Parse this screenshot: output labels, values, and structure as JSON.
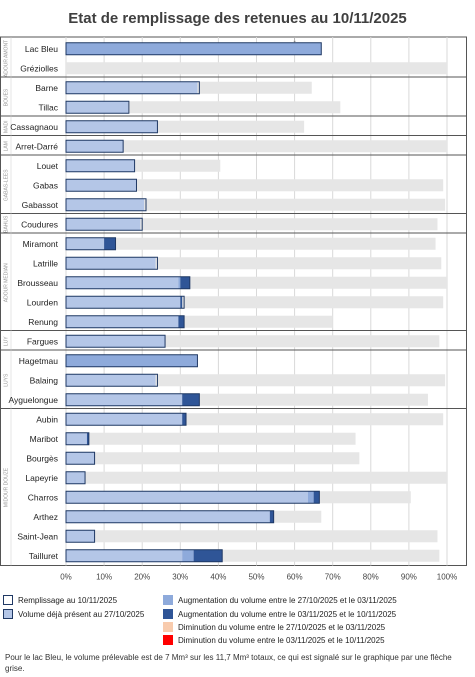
{
  "chart_data": {
    "type": "bar",
    "orientation": "horizontal",
    "stacked": true,
    "title": "Etat de remplissage des retenues au 10/11/2025",
    "x_ticks": [
      "0%",
      "10%",
      "20%",
      "30%",
      "40%",
      "50%",
      "60%",
      "70%",
      "80%",
      "90%",
      "100%"
    ],
    "xlim": [
      0,
      100
    ],
    "grid": true,
    "marker_symbol": "↓",
    "groups": [
      {
        "name": "ADOUR AMONT",
        "rows": [
          "Lac Bleu",
          "Gréziolles"
        ]
      },
      {
        "name": "BOUES",
        "rows": [
          "Barne",
          "Tillac"
        ]
      },
      {
        "name": "MADI",
        "rows": [
          "Cassagnaou"
        ]
      },
      {
        "name": "LAM",
        "rows": [
          "Arret-Darré"
        ]
      },
      {
        "name": "GABAS-LEES",
        "rows": [
          "Louet",
          "Gabas",
          "Gabassot"
        ]
      },
      {
        "name": "BAHUS",
        "rows": [
          "Coudures"
        ]
      },
      {
        "name": "ADOUR MEDIAN",
        "rows": [
          "Miramont",
          "Latrille",
          "Brousseau",
          "Lourden",
          "Renung"
        ]
      },
      {
        "name": "LUY",
        "rows": [
          "Fargues"
        ]
      },
      {
        "name": "LUYS",
        "rows": [
          "Hagetmau",
          "Balaing",
          "Ayguelongue"
        ]
      },
      {
        "name": "MIDOUR DOUZE",
        "rows": [
          "Aubin",
          "Maribot",
          "Bourgès",
          "Lapeyrie",
          "Charros",
          "Arthez",
          "Saint-Jean",
          "Tailluret"
        ]
      }
    ],
    "series": [
      {
        "name": "Volume déjà présent au 27/10/2025",
        "color": "#b4c6e7"
      },
      {
        "name": "Augmentation du volume entre le 27/10/2025 et le 03/11/2025",
        "color": "#8eaadb"
      },
      {
        "name": "Augmentation du volume entre le 03/11/2025 et le 10/11/2025",
        "color": "#2f5597"
      },
      {
        "name": "Diminution du volume entre le 27/10/2025 et le 03/11/2025",
        "color": "#f8cbad"
      },
      {
        "name": "Diminution du volume entre le 03/11/2025 et le 10/11/2025",
        "color": "#ff0000"
      }
    ],
    "capacity_color": "#e6e6e6",
    "reservoirs": [
      {
        "name": "Lac Bleu",
        "base": 0,
        "inc1": 67,
        "inc2": 0,
        "fill": 67,
        "capacity": 67,
        "marker": 60
      },
      {
        "name": "Gréziolles",
        "base": 0,
        "inc1": 0,
        "inc2": 0,
        "fill": 0,
        "capacity": 100
      },
      {
        "name": "Barne",
        "base": 34.5,
        "inc1": 0,
        "inc2": 0,
        "fill": 35,
        "capacity": 64.5
      },
      {
        "name": "Tillac",
        "base": 16.3,
        "inc1": 0,
        "inc2": 0,
        "fill": 16.5,
        "capacity": 72
      },
      {
        "name": "Cassagnaou",
        "base": 24,
        "inc1": 0,
        "inc2": 0,
        "fill": 24,
        "capacity": 62.5
      },
      {
        "name": "Arret-Darré",
        "base": 15,
        "inc1": 0,
        "inc2": 0,
        "fill": 15,
        "capacity": 100
      },
      {
        "name": "Louet",
        "base": 18,
        "inc1": 0,
        "inc2": 0,
        "fill": 18,
        "capacity": 40.5
      },
      {
        "name": "Gabas",
        "base": 18.5,
        "inc1": 0,
        "inc2": 0,
        "fill": 18.5,
        "capacity": 99
      },
      {
        "name": "Gabassot",
        "base": 20.5,
        "inc1": 0,
        "inc2": 0,
        "fill": 21,
        "capacity": 99.5
      },
      {
        "name": "Coudures",
        "base": 19.5,
        "inc1": 0,
        "inc2": 0,
        "fill": 20,
        "capacity": 97.5
      },
      {
        "name": "Miramont",
        "base": 10,
        "inc1": 0,
        "inc2": 3,
        "fill": 13,
        "capacity": 97
      },
      {
        "name": "Latrille",
        "base": 23.5,
        "inc1": 0,
        "inc2": 0,
        "fill": 24,
        "capacity": 98.5
      },
      {
        "name": "Brousseau",
        "base": 29.5,
        "inc1": 0.5,
        "inc2": 2.5,
        "fill": 32.5,
        "capacity": 100
      },
      {
        "name": "Lourden",
        "base": 30,
        "inc1": 0,
        "inc2": 0.5,
        "fill": 31,
        "capacity": 99
      },
      {
        "name": "Renung",
        "base": 29.5,
        "inc1": 0,
        "inc2": 1.5,
        "fill": 31,
        "capacity": 70
      },
      {
        "name": "Fargues",
        "base": 26,
        "inc1": 0,
        "inc2": 0,
        "fill": 26,
        "capacity": 98
      },
      {
        "name": "Hagetmau",
        "base": 0,
        "inc1": 34.5,
        "inc2": 0,
        "fill": 34.5,
        "capacity": 34.5
      },
      {
        "name": "Balaing",
        "base": 23.5,
        "inc1": 0,
        "inc2": 0,
        "fill": 24,
        "capacity": 99.5
      },
      {
        "name": "Ayguelongue",
        "base": 30.5,
        "inc1": 0,
        "inc2": 4.5,
        "fill": 35,
        "capacity": 95
      },
      {
        "name": "Aubin",
        "base": 30.5,
        "inc1": 0,
        "inc2": 1,
        "fill": 31.5,
        "capacity": 99
      },
      {
        "name": "Maribot",
        "base": 5.5,
        "inc1": 0,
        "inc2": 0.5,
        "fill": 6,
        "capacity": 76
      },
      {
        "name": "Bourgès",
        "base": 7.5,
        "inc1": 0,
        "inc2": 0,
        "fill": 7.5,
        "capacity": 77
      },
      {
        "name": "Lapeyrie",
        "base": 5,
        "inc1": 0,
        "inc2": 0,
        "fill": 5,
        "capacity": 100
      },
      {
        "name": "Charros",
        "base": 63.5,
        "inc1": 1.5,
        "inc2": 1.5,
        "fill": 66.5,
        "capacity": 90.5
      },
      {
        "name": "Arthez",
        "base": 53.5,
        "inc1": 0,
        "inc2": 1,
        "fill": 54.5,
        "capacity": 67
      },
      {
        "name": "Saint-Jean",
        "base": 7.5,
        "inc1": 0,
        "inc2": 0,
        "fill": 7.5,
        "capacity": 97.5
      },
      {
        "name": "Tailluret",
        "base": 30.5,
        "inc1": 3,
        "inc2": 7.5,
        "fill": 41,
        "capacity": 98
      }
    ]
  },
  "legend": {
    "fill_label": "Remplissage au 10/11/2025",
    "present_label": "Volume déjà présent au 27/10/2025",
    "aug1_label": "Augmentation du volume entre le 27/10/2025 et le 03/11/2025",
    "aug2_label": "Augmentation du volume entre le 03/11/2025 et le 10/11/2025",
    "dim1_label": "Diminution du volume entre le 27/10/2025 et le 03/11/2025",
    "dim2_label": "Diminution du volume entre le 03/11/2025 et le 10/11/2025",
    "fill_border_color": "#1f3864",
    "present_color": "#b4c6e7",
    "aug1_color": "#8eaadb",
    "aug2_color": "#2f5597",
    "dim1_color": "#f8cbad",
    "dim2_color": "#ff0000"
  },
  "footnote": "Pour le lac Bleu, le volume prélevable est de 7 Mm³ sur les 11,7 Mm³ totaux, ce qui est signalé sur le graphique par une flèche grise."
}
